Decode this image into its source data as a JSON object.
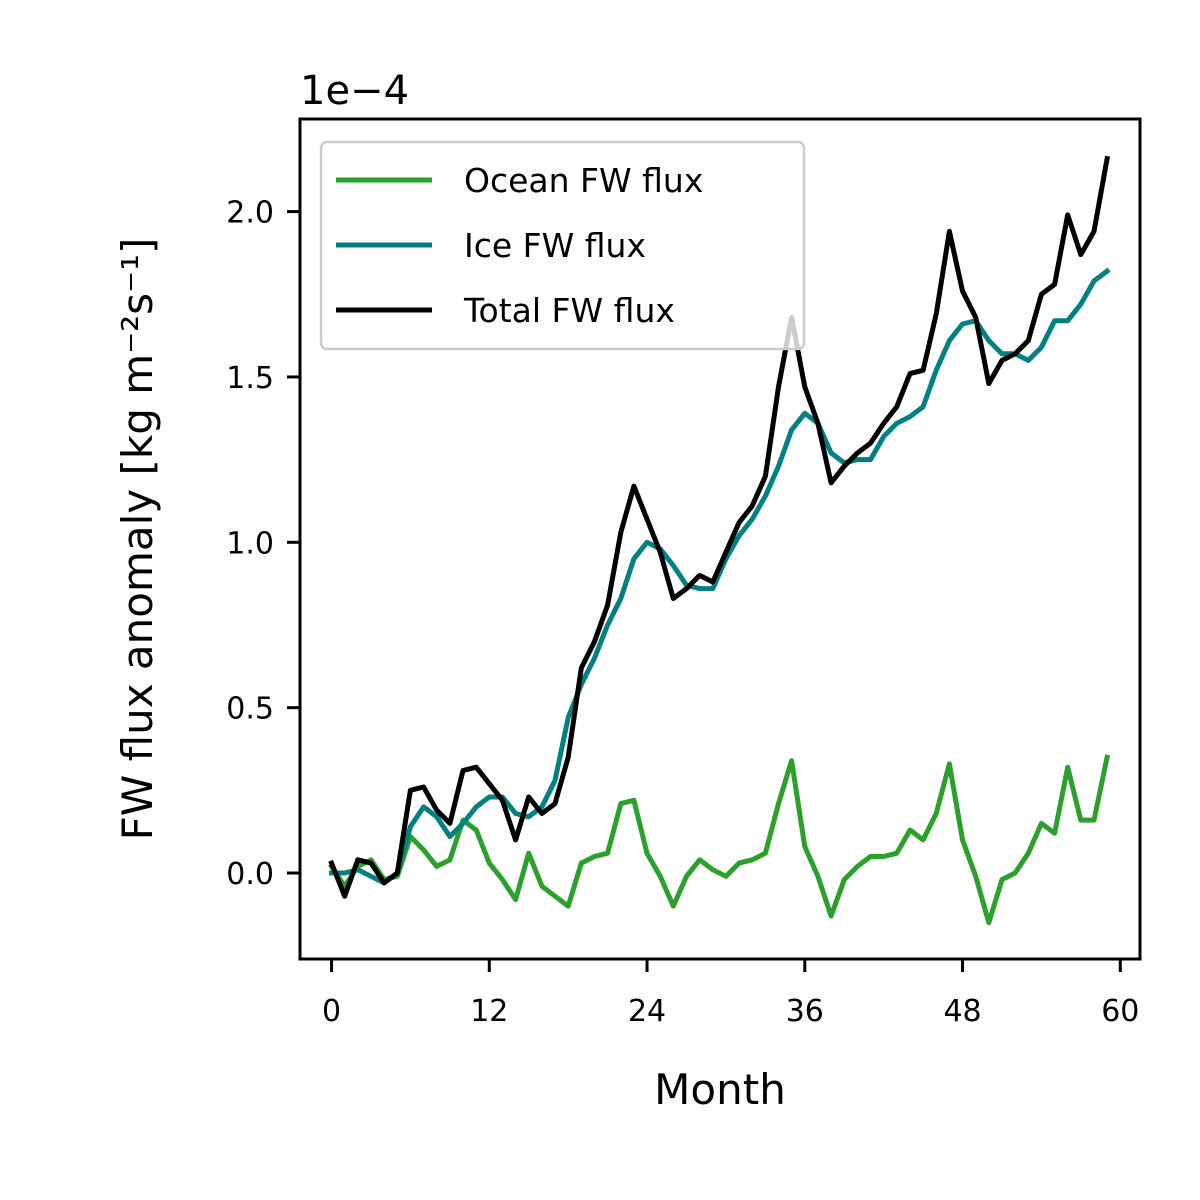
{
  "chart_data": {
    "type": "line",
    "xlabel": "Month",
    "ylabel": "FW flux anomaly [kg m⁻²s⁻¹]",
    "offset_text": "1e−4",
    "xlim": [
      -2.4,
      61.5
    ],
    "ylim": [
      -0.26,
      2.28
    ],
    "xticks": [
      0,
      12,
      24,
      36,
      48,
      60
    ],
    "xtick_labels": [
      "0",
      "12",
      "24",
      "36",
      "48",
      "60"
    ],
    "yticks": [
      0.0,
      0.5,
      1.0,
      1.5,
      2.0
    ],
    "ytick_labels": [
      "0.0",
      "0.5",
      "1.0",
      "1.5",
      "2.0"
    ],
    "grid": false,
    "legend_position": "top-left",
    "series": [
      {
        "name": "Ocean FW flux",
        "color": "#2ca02c",
        "x": [
          0,
          1,
          2,
          3,
          4,
          5,
          6,
          7,
          8,
          9,
          10,
          11,
          12,
          13,
          14,
          15,
          16,
          17,
          18,
          19,
          20,
          21,
          22,
          23,
          24,
          25,
          26,
          27,
          28,
          29,
          30,
          31,
          32,
          33,
          34,
          35,
          36,
          37,
          38,
          39,
          40,
          41,
          42,
          43,
          44,
          45,
          46,
          47,
          48,
          49,
          50,
          51,
          52,
          53,
          54,
          55,
          56,
          57,
          58,
          59
        ],
        "values": [
          0.02,
          -0.04,
          0.02,
          0.04,
          -0.02,
          -0.01,
          0.11,
          0.07,
          0.02,
          0.04,
          0.16,
          0.13,
          0.03,
          -0.02,
          -0.08,
          0.06,
          -0.04,
          -0.07,
          -0.1,
          0.03,
          0.05,
          0.06,
          0.21,
          0.22,
          0.06,
          -0.01,
          -0.1,
          -0.01,
          0.04,
          0.01,
          -0.01,
          0.03,
          0.04,
          0.06,
          0.21,
          0.34,
          0.08,
          -0.01,
          -0.13,
          -0.02,
          0.02,
          0.05,
          0.05,
          0.06,
          0.13,
          0.1,
          0.18,
          0.33,
          0.1,
          -0.01,
          -0.15,
          -0.02,
          0.0,
          0.06,
          0.15,
          0.12,
          0.32,
          0.16,
          0.16,
          0.35
        ]
      },
      {
        "name": "Ice FW flux",
        "color": "#008080",
        "x": [
          0,
          1,
          2,
          3,
          4,
          5,
          6,
          7,
          8,
          9,
          10,
          11,
          12,
          13,
          14,
          15,
          16,
          17,
          18,
          19,
          20,
          21,
          22,
          23,
          24,
          25,
          26,
          27,
          28,
          29,
          30,
          31,
          32,
          33,
          34,
          35,
          36,
          37,
          38,
          39,
          40,
          41,
          42,
          43,
          44,
          45,
          46,
          47,
          48,
          49,
          50,
          51,
          52,
          53,
          54,
          55,
          56,
          57,
          58,
          59
        ],
        "values": [
          0.0,
          0.0,
          0.01,
          -0.01,
          -0.03,
          0.0,
          0.14,
          0.2,
          0.17,
          0.11,
          0.15,
          0.2,
          0.23,
          0.23,
          0.18,
          0.17,
          0.2,
          0.28,
          0.47,
          0.57,
          0.65,
          0.75,
          0.83,
          0.95,
          1.0,
          0.98,
          0.93,
          0.87,
          0.86,
          0.86,
          0.95,
          1.02,
          1.07,
          1.14,
          1.23,
          1.34,
          1.39,
          1.36,
          1.27,
          1.24,
          1.25,
          1.25,
          1.32,
          1.36,
          1.38,
          1.41,
          1.52,
          1.61,
          1.66,
          1.67,
          1.61,
          1.57,
          1.57,
          1.55,
          1.59,
          1.67,
          1.67,
          1.72,
          1.79,
          1.82
        ]
      },
      {
        "name": "Total FW flux",
        "color": "#000000",
        "x": [
          0,
          1,
          2,
          3,
          4,
          5,
          6,
          7,
          8,
          9,
          10,
          11,
          12,
          13,
          14,
          15,
          16,
          17,
          18,
          19,
          20,
          21,
          22,
          23,
          24,
          25,
          26,
          27,
          28,
          29,
          30,
          31,
          32,
          33,
          34,
          35,
          36,
          37,
          38,
          39,
          40,
          41,
          42,
          43,
          44,
          45,
          46,
          47,
          48,
          49,
          50,
          51,
          52,
          53,
          54,
          55,
          56,
          57,
          58,
          59
        ],
        "values": [
          0.03,
          -0.07,
          0.04,
          0.03,
          -0.03,
          0.0,
          0.25,
          0.26,
          0.19,
          0.15,
          0.31,
          0.32,
          0.27,
          0.22,
          0.1,
          0.23,
          0.18,
          0.21,
          0.35,
          0.62,
          0.7,
          0.81,
          1.03,
          1.17,
          1.07,
          0.97,
          0.83,
          0.86,
          0.9,
          0.88,
          0.97,
          1.06,
          1.11,
          1.2,
          1.47,
          1.68,
          1.47,
          1.36,
          1.18,
          1.23,
          1.27,
          1.3,
          1.36,
          1.41,
          1.51,
          1.52,
          1.69,
          1.94,
          1.76,
          1.68,
          1.48,
          1.55,
          1.57,
          1.61,
          1.75,
          1.78,
          1.99,
          1.87,
          1.94,
          2.16
        ]
      }
    ]
  }
}
